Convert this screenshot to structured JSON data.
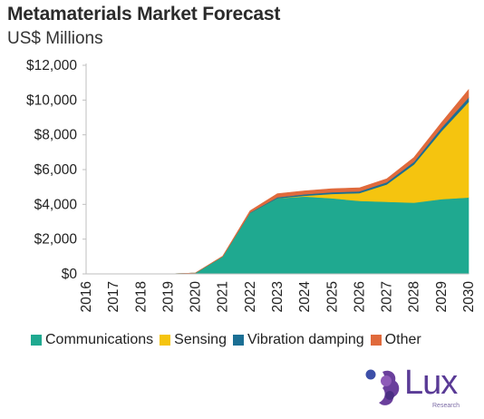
{
  "chart_data": {
    "type": "area",
    "stacked": true,
    "title": "Metamaterials Market Forecast",
    "subtitle": "US$ Millions",
    "xlabel": "",
    "ylabel": "",
    "x": [
      "2016",
      "2017",
      "2018",
      "2019",
      "2020",
      "2021",
      "2022",
      "2023",
      "2024",
      "2025",
      "2026",
      "2027",
      "2028",
      "2029",
      "2030"
    ],
    "ylim": [
      0,
      12000
    ],
    "yticks": [
      "$0",
      "$2,000",
      "$4,000",
      "$6,000",
      "$8,000",
      "$10,000",
      "$12,000"
    ],
    "legend_position": "bottom",
    "grid": false,
    "series": [
      {
        "name": "Communications",
        "color": "#1fa990",
        "values": [
          0,
          0,
          0,
          0,
          50,
          1000,
          3500,
          4350,
          4450,
          4350,
          4200,
          4150,
          4100,
          4300,
          4400
        ]
      },
      {
        "name": "Sensing",
        "color": "#f5c40f",
        "values": [
          0,
          0,
          0,
          0,
          0,
          0,
          0,
          0,
          50,
          250,
          450,
          1000,
          2200,
          3900,
          5500
        ]
      },
      {
        "name": "Vibration damping",
        "color": "#1b6f94",
        "values": [
          0,
          0,
          0,
          0,
          0,
          0,
          30,
          60,
          80,
          100,
          100,
          120,
          150,
          200,
          250
        ]
      },
      {
        "name": "Other",
        "color": "#e06a3c",
        "values": [
          0,
          0,
          0,
          0,
          0,
          20,
          100,
          200,
          200,
          200,
          200,
          200,
          250,
          300,
          450
        ]
      }
    ]
  },
  "logo": {
    "text": "Lux",
    "subtext": "Research"
  }
}
